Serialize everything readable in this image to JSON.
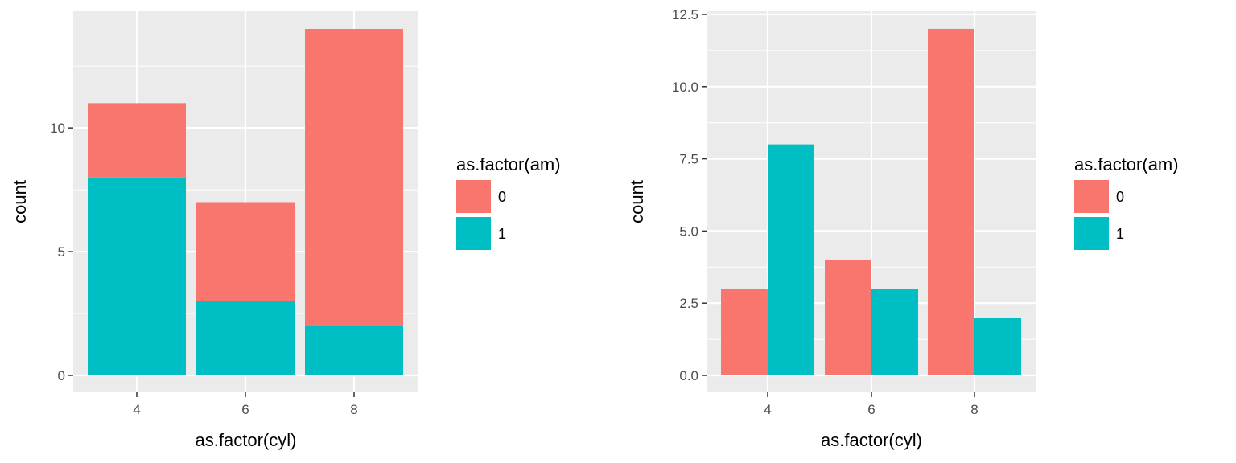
{
  "colors": {
    "am0": "#F8766D",
    "am1": "#00BFC4",
    "panel": "#EBEBEB",
    "grid": "#FFFFFF",
    "tick": "#333333"
  },
  "chart_data": [
    {
      "type": "bar",
      "position": "stacked",
      "categories": [
        "4",
        "6",
        "8"
      ],
      "series": [
        {
          "name": "0",
          "values": [
            3,
            4,
            12
          ]
        },
        {
          "name": "1",
          "values": [
            8,
            3,
            2
          ]
        }
      ],
      "xlabel": "as.factor(cyl)",
      "ylabel": "count",
      "ylim": [
        0,
        14
      ],
      "yticks": [
        0,
        5,
        10
      ],
      "yticklabels": [
        "0",
        "5",
        "10"
      ],
      "legend": {
        "title": "as.factor(am)",
        "entries": [
          "0",
          "1"
        ],
        "placement": "right"
      },
      "grid": true
    },
    {
      "type": "bar",
      "position": "dodged",
      "categories": [
        "4",
        "6",
        "8"
      ],
      "series": [
        {
          "name": "0",
          "values": [
            3,
            4,
            12
          ]
        },
        {
          "name": "1",
          "values": [
            8,
            3,
            2
          ]
        }
      ],
      "xlabel": "as.factor(cyl)",
      "ylabel": "count",
      "ylim": [
        0,
        12.5
      ],
      "yticks": [
        0,
        2.5,
        5,
        7.5,
        10,
        12.5
      ],
      "yticklabels": [
        "0.0",
        "2.5",
        "5.0",
        "7.5",
        "10.0",
        "12.5"
      ],
      "legend": {
        "title": "as.factor(am)",
        "entries": [
          "0",
          "1"
        ],
        "placement": "right"
      },
      "grid": true
    }
  ]
}
